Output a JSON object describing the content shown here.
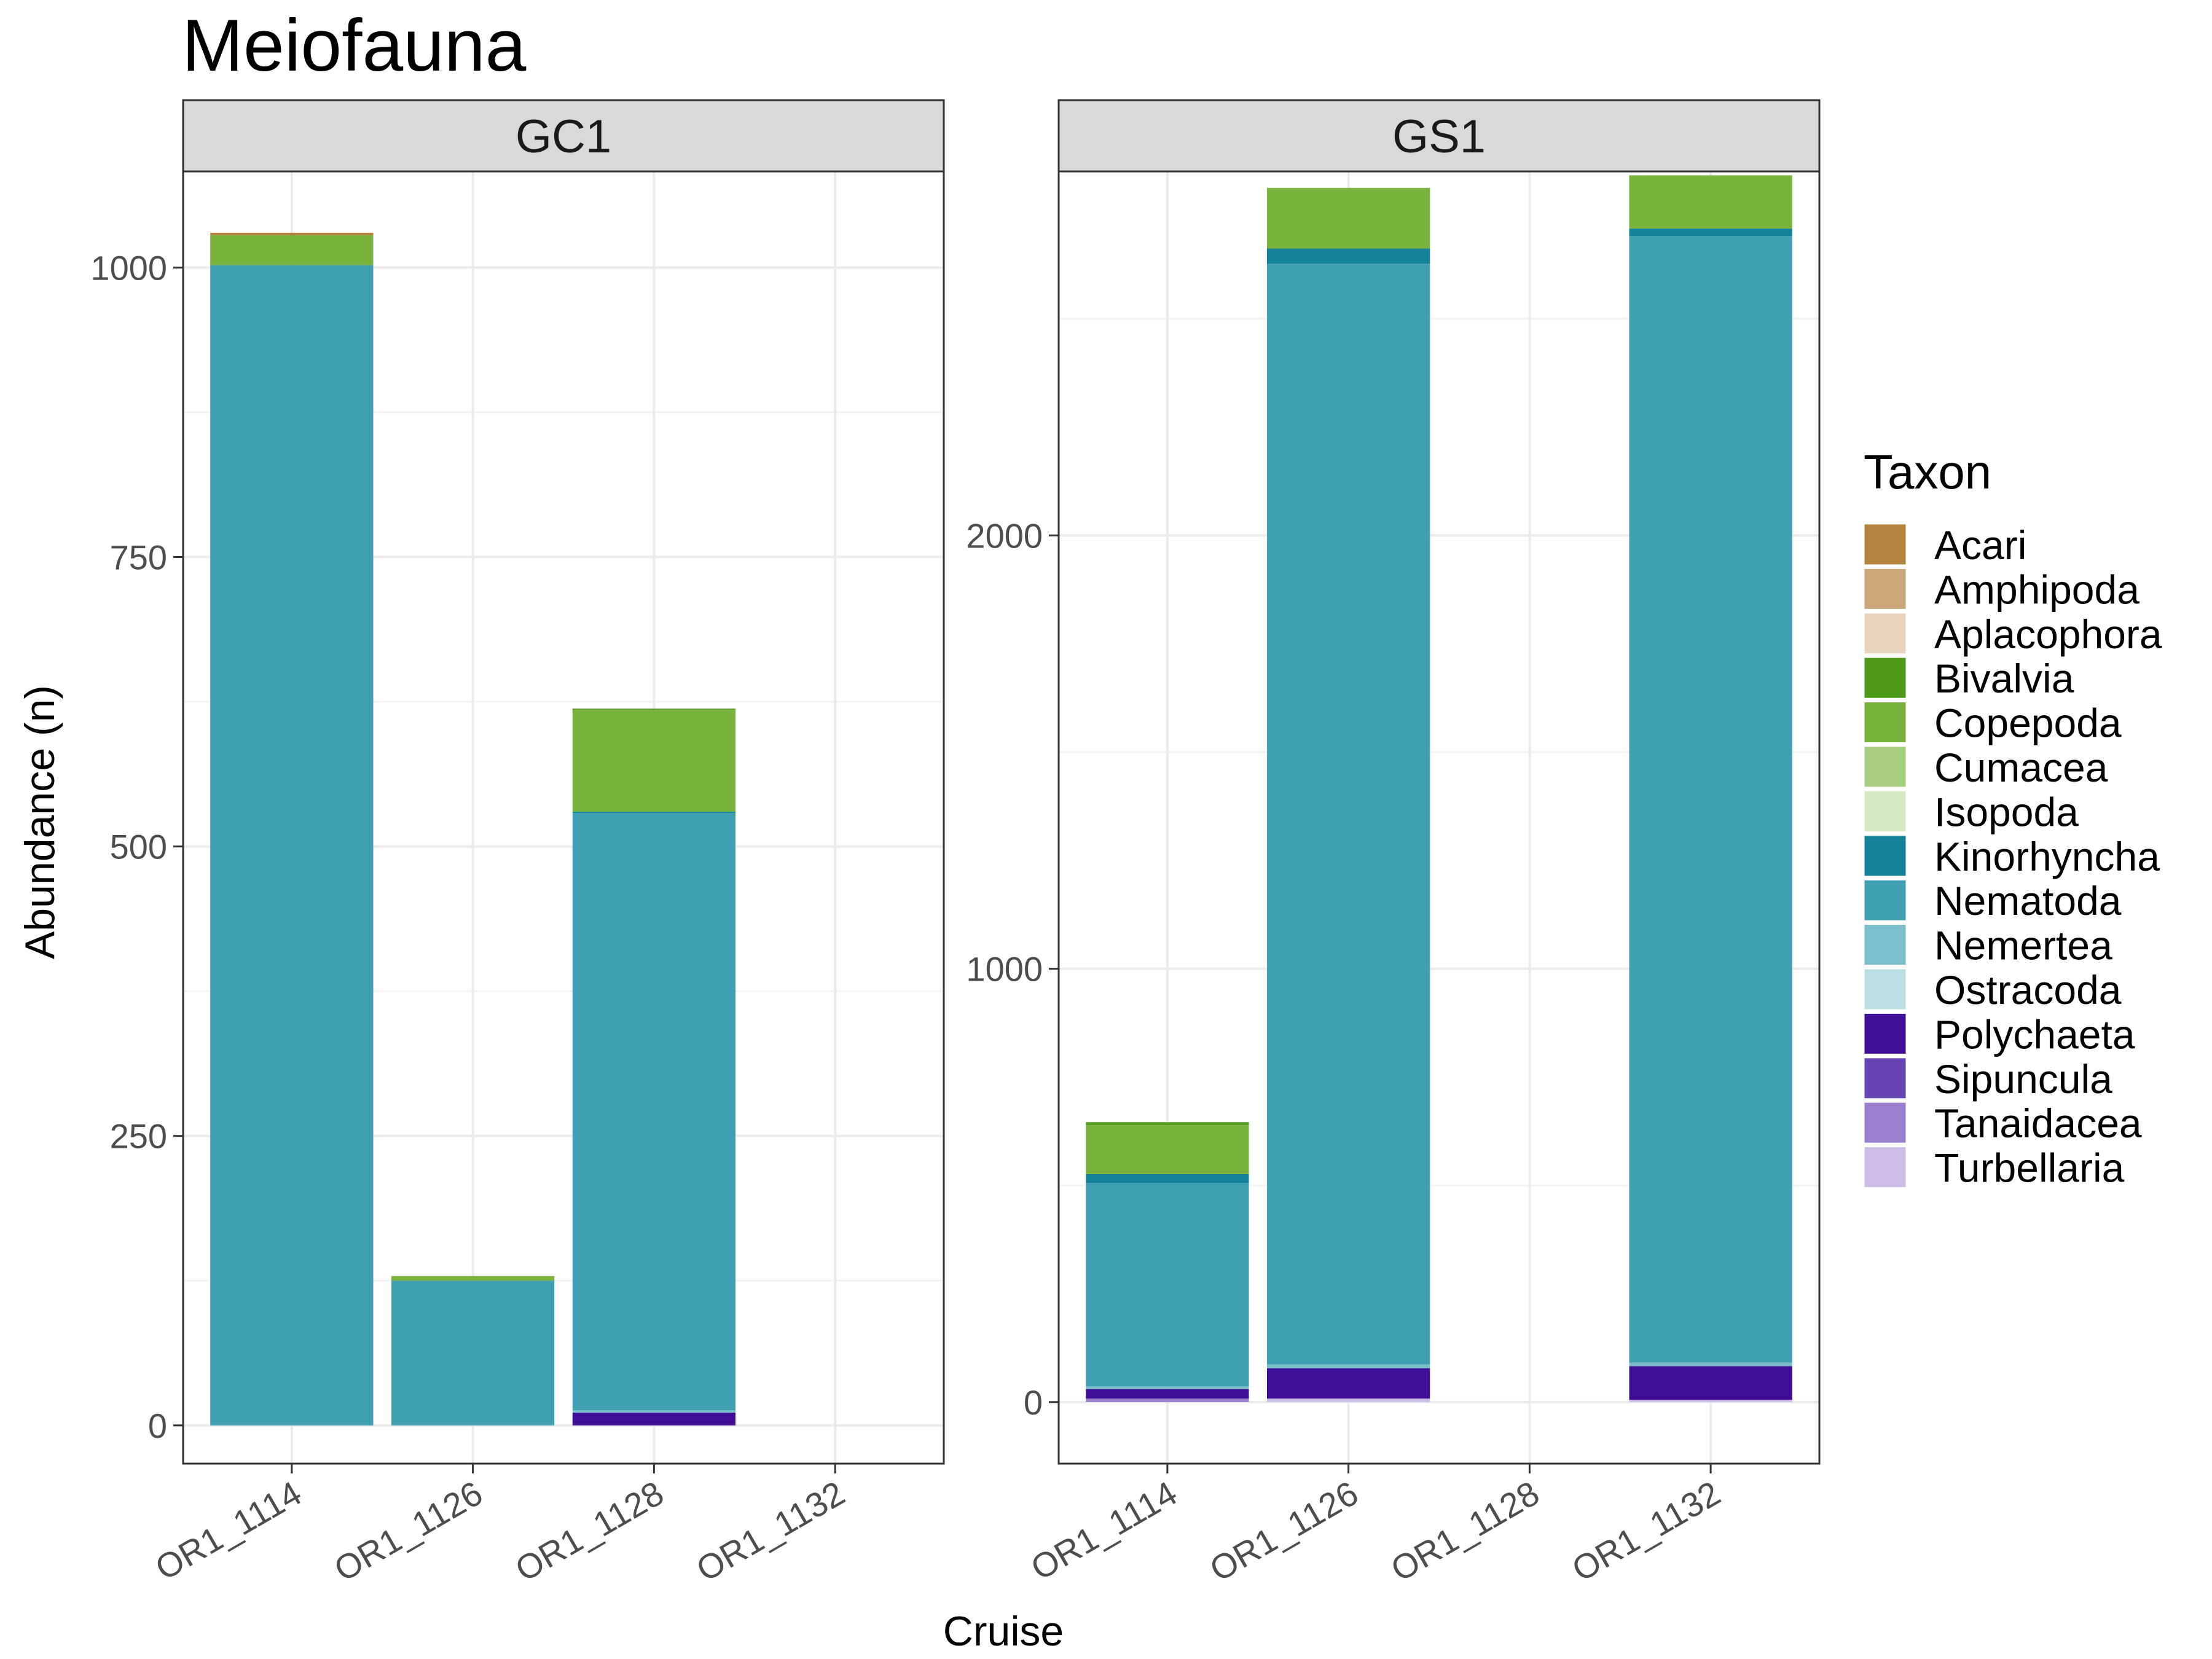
{
  "chart_data": {
    "type": "bar",
    "stacked": true,
    "title": "Meiofauna",
    "xlabel": "Cruise",
    "ylabel": "Abundance (n)",
    "legend_title": "Taxon",
    "legend_position": "right",
    "grid": true,
    "categories": [
      "OR1_1114",
      "OR1_1126",
      "OR1_1128",
      "OR1_1132"
    ],
    "taxa": [
      {
        "name": "Acari",
        "color": "#B5813F"
      },
      {
        "name": "Amphipoda",
        "color": "#CBA677"
      },
      {
        "name": "Aplacophora",
        "color": "#E8D3BF"
      },
      {
        "name": "Bivalvia",
        "color": "#4E9A19"
      },
      {
        "name": "Copepoda",
        "color": "#7AB23E"
      },
      {
        "name": "Cumacea",
        "color": "#A6CD7E"
      },
      {
        "name": "Isopoda",
        "color": "#D4E8C2"
      },
      {
        "name": "Kinorhyncha",
        "color": "#13839A"
      },
      {
        "name": "Nematoda",
        "color": "#409FB2"
      },
      {
        "name": "Nemertea",
        "color": "#7BBFCB"
      },
      {
        "name": "Ostracoda",
        "color": "#BCDFE6"
      },
      {
        "name": "Polychaeta",
        "color": "#3E0F96"
      },
      {
        "name": "Sipuncula",
        "color": "#6744B2"
      },
      {
        "name": "Tanaidacea",
        "color": "#9A7FCC"
      },
      {
        "name": "Turbellaria",
        "color": "#CBBDE6"
      }
    ],
    "panels": [
      {
        "label": "GC1",
        "ylim": [
          -33,
          1083
        ],
        "yticks": [
          0,
          250,
          500,
          750,
          1000
        ],
        "stacks": [
          [
            {
              "taxon": "Nematoda",
              "value": 1002
            },
            {
              "taxon": "Copepoda",
              "value": 26
            },
            {
              "taxon": "Acari",
              "value": 2
            }
          ],
          [
            {
              "taxon": "Nematoda",
              "value": 125
            },
            {
              "taxon": "Copepoda",
              "value": 4
            }
          ],
          [
            {
              "taxon": "Polychaeta",
              "value": 11
            },
            {
              "taxon": "Nemertea",
              "value": 2
            },
            {
              "taxon": "Nematoda",
              "value": 516
            },
            {
              "taxon": "Kinorhyncha",
              "value": 1
            },
            {
              "taxon": "Copepoda",
              "value": 88
            },
            {
              "taxon": "Bivalvia",
              "value": 1
            }
          ],
          []
        ]
      },
      {
        "label": "GS1",
        "ylim": [
          -142,
          2840
        ],
        "yticks": [
          0,
          1000,
          2000
        ],
        "stacks": [
          [
            {
              "taxon": "Tanaidacea",
              "value": 8
            },
            {
              "taxon": "Polychaeta",
              "value": 22
            },
            {
              "taxon": "Nemertea",
              "value": 6
            },
            {
              "taxon": "Nematoda",
              "value": 470
            },
            {
              "taxon": "Kinorhyncha",
              "value": 20
            },
            {
              "taxon": "Copepoda",
              "value": 113
            },
            {
              "taxon": "Bivalvia",
              "value": 7
            }
          ],
          [
            {
              "taxon": "Turbellaria",
              "value": 8
            },
            {
              "taxon": "Polychaeta",
              "value": 70
            },
            {
              "taxon": "Nemertea",
              "value": 9
            },
            {
              "taxon": "Nematoda",
              "value": 2540
            },
            {
              "taxon": "Kinorhyncha",
              "value": 35
            },
            {
              "taxon": "Copepoda",
              "value": 140
            }
          ],
          [],
          [
            {
              "taxon": "Turbellaria",
              "value": 5
            },
            {
              "taxon": "Polychaeta",
              "value": 78
            },
            {
              "taxon": "Nemertea",
              "value": 8
            },
            {
              "taxon": "Nematoda",
              "value": 2600
            },
            {
              "taxon": "Kinorhyncha",
              "value": 17
            },
            {
              "taxon": "Copepoda",
              "value": 123
            }
          ]
        ]
      }
    ]
  }
}
